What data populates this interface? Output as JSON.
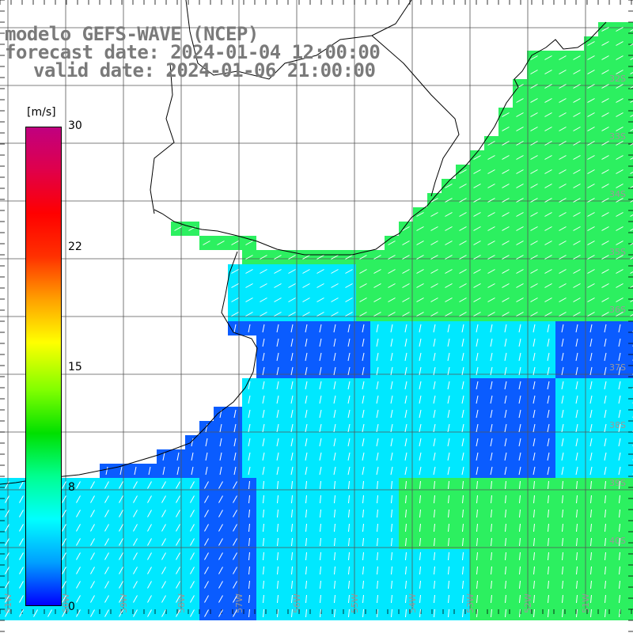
{
  "title": {
    "line1": "modelo GEFS-WAVE (NCEP)",
    "line2": "forecast date: 2024-01-04 12:00:00",
    "line3": "valid date: 2024-01-06 21:00:00"
  },
  "colorbar": {
    "unit": "[m/s]",
    "ticks": [
      "30",
      "22",
      "15",
      "8",
      "0"
    ],
    "tick_values": [
      30,
      22,
      15,
      8,
      0
    ],
    "colors": [
      "#0000ff",
      "#00a0ff",
      "#00ffff",
      "#00ff90",
      "#00e000",
      "#80ff00",
      "#ffff00",
      "#ffa000",
      "#ff3000",
      "#ff0000",
      "#e0004a",
      "#c00080"
    ]
  },
  "map": {
    "lat_labels": [
      "32S",
      "33S",
      "34S",
      "35S",
      "36S",
      "37S",
      "38S",
      "39S",
      "40S"
    ],
    "lon_labels": [
      "61W",
      "60W",
      "59W",
      "58W",
      "57W",
      "56W",
      "55W",
      "54W",
      "53W",
      "52W",
      "51W",
      "50W"
    ],
    "ocean_colors": {
      "blue": "#0a5cff",
      "cyan": "#00e8ff",
      "green": "#2cf060",
      "teal": "#00f0c8"
    },
    "land_color": "#ffffff",
    "arrow_color": "#ffffff"
  }
}
